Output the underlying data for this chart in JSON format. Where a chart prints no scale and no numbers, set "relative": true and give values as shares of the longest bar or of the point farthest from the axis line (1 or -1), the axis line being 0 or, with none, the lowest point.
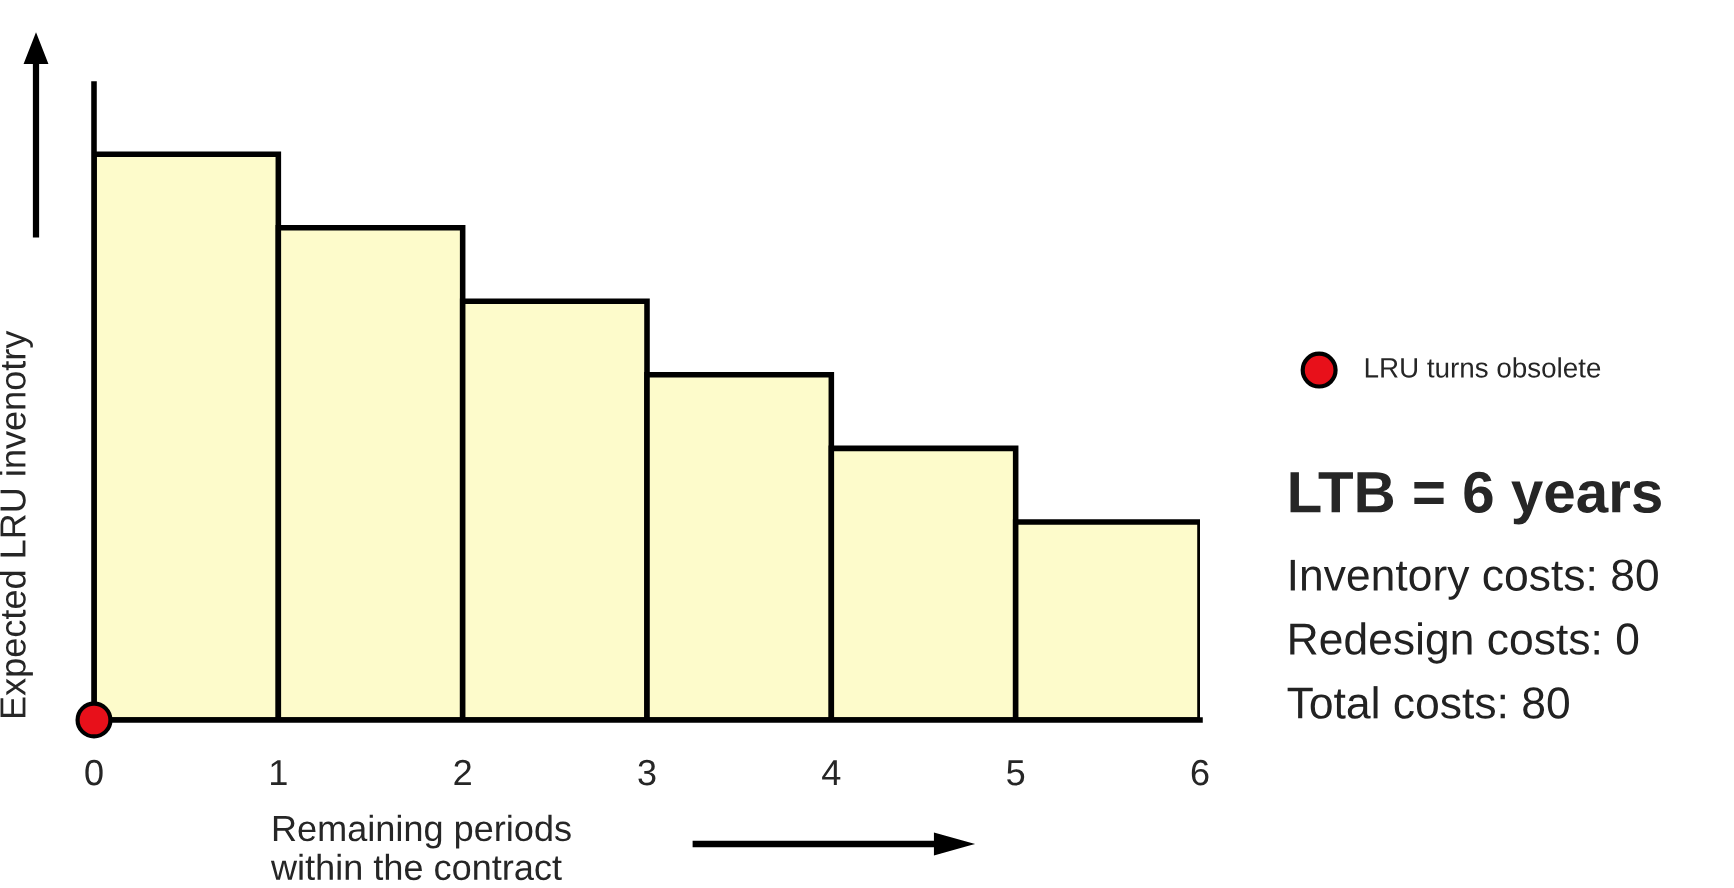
{
  "chart_data": {
    "type": "bar",
    "relative": true,
    "x": [
      0.5,
      1.5,
      2.5,
      3.5,
      4.5,
      5.5
    ],
    "values": [
      1,
      0.87,
      0.74,
      0.61,
      0.48,
      0.35
    ],
    "color": "#fdfbcb",
    "xlim": [
      0,
      6
    ],
    "xticks": [
      0,
      1,
      2,
      3,
      4,
      5,
      6
    ],
    "xlabel": "Remaining periods\nwithin the contract",
    "ylabel": "Expected LRU invenotry",
    "series": [
      {
        "type": "scatter",
        "name": "LRU turns obsolete",
        "color": "#e8101a",
        "x": [
          0
        ],
        "values": [
          0
        ],
        "marker": "circle"
      }
    ],
    "legend": "right",
    "grid": false,
    "annotations": [
      "LTB = 6 years",
      "Inventory costs: 80",
      "Redesign costs: 0",
      "Total costs: 80"
    ]
  }
}
